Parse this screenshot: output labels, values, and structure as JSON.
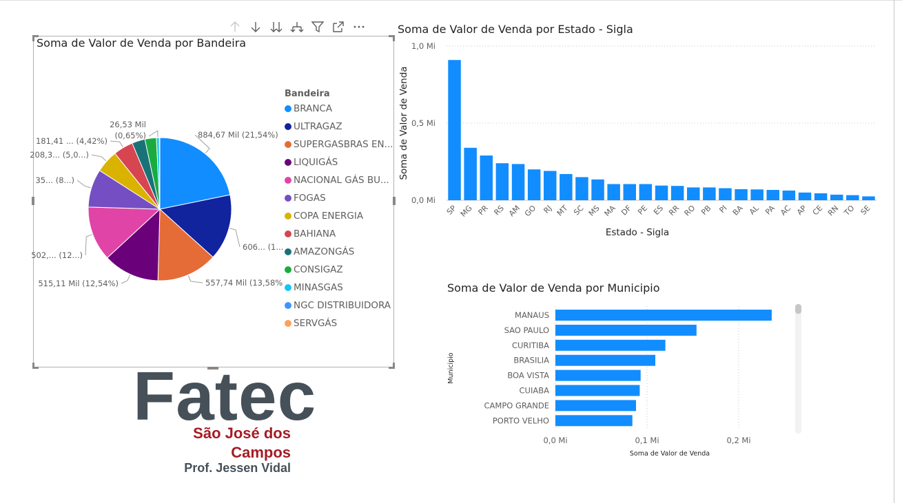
{
  "toolbar": {
    "icons": [
      "arrow-up-icon",
      "arrow-down-icon",
      "double-arrow-down-icon",
      "expand-hierarchy-icon",
      "filter-icon",
      "focus-mode-icon",
      "more-options-icon"
    ]
  },
  "colors": {
    "bar": "#118DFF",
    "logo_gray": "#465059",
    "logo_red": "#A51C24"
  },
  "pie": {
    "title": "Soma de Valor de Venda por Bandeira",
    "legend_title": "Bandeira",
    "slices": [
      {
        "name": "BRANCA",
        "value": 884.67,
        "color": "#118DFF"
      },
      {
        "name": "ULTRAGAZ",
        "value": 606.0,
        "color": "#12239E"
      },
      {
        "name": "SUPERGASBRAS EN...",
        "value": 557.74,
        "color": "#E66C37"
      },
      {
        "name": "LIQUIGÁS",
        "value": 515.11,
        "color": "#6B007B"
      },
      {
        "name": "NACIONAL GÁS BU...",
        "value": 502.0,
        "color": "#E044A7"
      },
      {
        "name": "FOGAS",
        "value": 350.0,
        "color": "#744EC2"
      },
      {
        "name": "COPA ENERGIA",
        "value": 208.3,
        "color": "#D9B300"
      },
      {
        "name": "BAHIANA",
        "value": 181.41,
        "color": "#D64550"
      },
      {
        "name": "AMAZONGÁS",
        "value": 120.0,
        "color": "#197278"
      },
      {
        "name": "CONSIGAZ",
        "value": 105.0,
        "color": "#1AAB40"
      },
      {
        "name": "MINASGAS",
        "value": 26.53,
        "color": "#15C6F4"
      },
      {
        "name": "NGC DISTRIBUIDORA",
        "value": 3.0,
        "color": "#4092FF"
      },
      {
        "name": "SERVGÁS",
        "value": 2.0,
        "color": "#FFA058"
      }
    ],
    "data_labels": [
      {
        "line1": "884,67 Mil (21,54%)"
      },
      {
        "line1": "606... (1...)"
      },
      {
        "line1": "557,74 Mil (13,58%)"
      },
      {
        "line1": "515,11 Mil (12,54%)"
      },
      {
        "line1": "502,... (12...)"
      },
      {
        "line1": "35... (8...)"
      },
      {
        "line1": "208,3... (5,0...)"
      },
      {
        "line1": "181,41 ... (4,42%)"
      },
      {
        "line1": "26,53 Mil",
        "line2": "(0,65%)"
      }
    ]
  },
  "chart_data": [
    {
      "type": "pie",
      "title": "Soma de Valor de Venda por Bandeira",
      "legend_title": "Bandeira",
      "legend_position": "right",
      "categories": [
        "BRANCA",
        "ULTRAGAZ",
        "SUPERGASBRAS EN...",
        "LIQUIGÁS",
        "NACIONAL GÁS BU...",
        "FOGAS",
        "COPA ENERGIA",
        "BAHIANA",
        "AMAZONGÁS",
        "CONSIGAZ",
        "MINASGAS",
        "NGC DISTRIBUIDORA",
        "SERVGÁS"
      ],
      "values": [
        884.67,
        606.0,
        557.74,
        515.11,
        502.0,
        350.0,
        208.3,
        181.41,
        120.0,
        105.0,
        26.53,
        3.0,
        2.0
      ],
      "unit": "Mil"
    },
    {
      "type": "bar",
      "orientation": "vertical",
      "title": "Soma de Valor de Venda por Estado - Sigla",
      "xlabel": "Estado - Sigla",
      "ylabel": "Soma de Valor de Venda",
      "unit": "Mi",
      "ylim": [
        0,
        1.0
      ],
      "yticks": [
        "0,0 Mi",
        "0,5 Mi",
        "1,0 Mi"
      ],
      "grid": true,
      "categories": [
        "SP",
        "MG",
        "PR",
        "RS",
        "AM",
        "GO",
        "RJ",
        "MT",
        "SC",
        "MS",
        "MA",
        "DF",
        "PE",
        "ES",
        "RR",
        "RO",
        "PB",
        "PI",
        "BA",
        "AL",
        "PA",
        "AC",
        "AP",
        "CE",
        "RN",
        "TO",
        "SE"
      ],
      "values": [
        0.91,
        0.34,
        0.29,
        0.24,
        0.235,
        0.2,
        0.19,
        0.17,
        0.15,
        0.135,
        0.105,
        0.105,
        0.105,
        0.095,
        0.093,
        0.083,
        0.083,
        0.078,
        0.072,
        0.07,
        0.067,
        0.063,
        0.05,
        0.045,
        0.036,
        0.033,
        0.025
      ]
    },
    {
      "type": "bar",
      "orientation": "horizontal",
      "title": "Soma de Valor de Venda por Municipio",
      "xlabel": "Soma de Valor de Venda",
      "ylabel": "Municipio",
      "unit": "Mi",
      "xlim": [
        0,
        0.25
      ],
      "xticks": [
        "0,0 Mi",
        "0,1 Mi",
        "0,2 Mi"
      ],
      "grid": true,
      "categories": [
        "MANAUS",
        "SAO PAULO",
        "CURITIBA",
        "BRASILIA",
        "BOA VISTA",
        "CUIABA",
        "CAMPO GRANDE",
        "PORTO VELHO"
      ],
      "values": [
        0.236,
        0.154,
        0.12,
        0.109,
        0.093,
        0.092,
        0.088,
        0.084
      ]
    }
  ],
  "logo": {
    "main": "Fatec",
    "line1": "São José dos",
    "line2": "Campos",
    "line3": "Prof. Jessen Vidal"
  }
}
